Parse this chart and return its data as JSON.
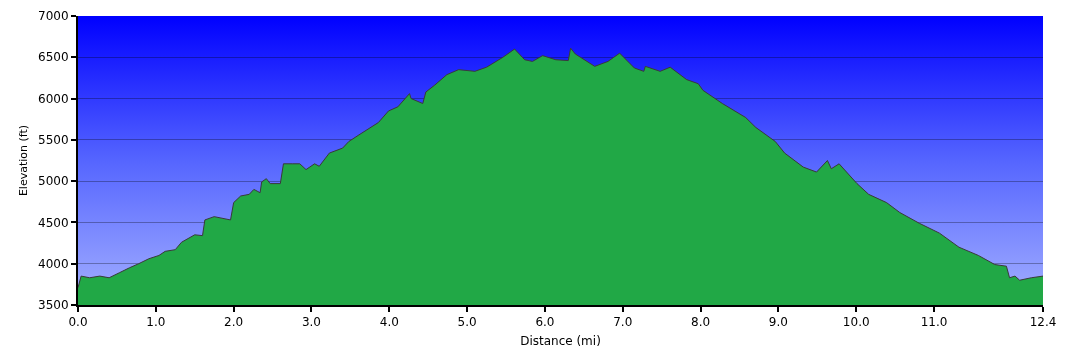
{
  "chart_data": {
    "type": "area",
    "xlabel": "Distance (mi)",
    "ylabel": "Elevation (ft)",
    "x": [
      0.0,
      0.04,
      0.15,
      0.28,
      0.4,
      0.53,
      0.66,
      0.78,
      0.91,
      1.04,
      1.12,
      1.25,
      1.33,
      1.5,
      1.6,
      1.63,
      1.75,
      1.96,
      2.0,
      2.09,
      2.2,
      2.26,
      2.34,
      2.36,
      2.42,
      2.47,
      2.6,
      2.64,
      2.76,
      2.85,
      2.93,
      3.04,
      3.1,
      3.23,
      3.4,
      3.48,
      3.61,
      3.86,
      3.99,
      4.11,
      4.26,
      4.28,
      4.43,
      4.47,
      4.58,
      4.74,
      4.89,
      5.1,
      5.25,
      5.46,
      5.61,
      5.74,
      5.84,
      5.97,
      6.14,
      6.3,
      6.33,
      6.39,
      6.64,
      6.81,
      6.96,
      7.15,
      7.27,
      7.29,
      7.48,
      7.61,
      7.82,
      7.97,
      8.03,
      8.28,
      8.58,
      8.71,
      8.96,
      9.08,
      9.32,
      9.49,
      9.63,
      9.68,
      9.78,
      10.01,
      10.16,
      10.39,
      10.56,
      10.81,
      11.07,
      11.32,
      11.57,
      11.78,
      11.93,
      11.97,
      12.04,
      12.1,
      12.25,
      12.4
    ],
    "series": [
      {
        "color": "#21a846",
        "values": [
          3710,
          3850,
          3830,
          3850,
          3830,
          3890,
          3950,
          4000,
          4060,
          4100,
          4150,
          4170,
          4260,
          4350,
          4340,
          4530,
          4570,
          4530,
          4740,
          4820,
          4840,
          4900,
          4860,
          4990,
          5030,
          4970,
          4970,
          5210,
          5210,
          5210,
          5140,
          5210,
          5180,
          5340,
          5400,
          5480,
          5560,
          5710,
          5850,
          5900,
          6060,
          6000,
          5940,
          6080,
          6160,
          6290,
          6350,
          6330,
          6380,
          6500,
          6600,
          6470,
          6450,
          6520,
          6470,
          6460,
          6610,
          6540,
          6390,
          6450,
          6550,
          6370,
          6330,
          6390,
          6330,
          6380,
          6230,
          6180,
          6100,
          5940,
          5770,
          5650,
          5480,
          5340,
          5170,
          5110,
          5250,
          5150,
          5210,
          4970,
          4840,
          4740,
          4620,
          4490,
          4370,
          4200,
          4100,
          3990,
          3970,
          3830,
          3850,
          3800,
          3830,
          3850
        ]
      }
    ],
    "xlim": [
      0,
      12.4
    ],
    "ylim": [
      3500,
      7000
    ],
    "xticks": [
      {
        "value": 0,
        "label": "0.0"
      },
      {
        "value": 1,
        "label": "1.0"
      },
      {
        "value": 2,
        "label": "2.0"
      },
      {
        "value": 3,
        "label": "3.0"
      },
      {
        "value": 4,
        "label": "4.0"
      },
      {
        "value": 5,
        "label": "5.0"
      },
      {
        "value": 6,
        "label": "6.0"
      },
      {
        "value": 7,
        "label": "7.0"
      },
      {
        "value": 8,
        "label": "8.0"
      },
      {
        "value": 9,
        "label": "9.0"
      },
      {
        "value": 10,
        "label": "10.0"
      },
      {
        "value": 11,
        "label": "11.0"
      },
      {
        "value": 12.4,
        "label": "12.4"
      }
    ],
    "yticks": [
      3500,
      4000,
      4500,
      5000,
      5500,
      6000,
      6500,
      7000
    ],
    "grid": "y"
  }
}
